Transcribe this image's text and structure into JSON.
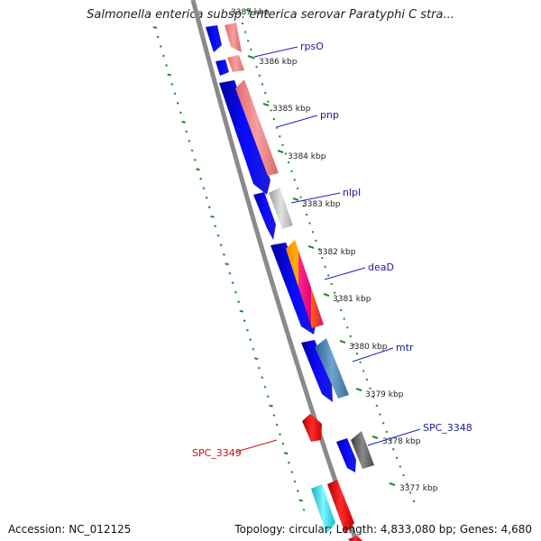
{
  "title": "Salmonella enterica subsp. enterica serovar Paratyphi C stra...",
  "footer": {
    "accession": "Accession: NC_012125",
    "summary": "Topology: circular; Length: 4,833,080 bp; Genes: 4,680"
  },
  "ticks": [
    {
      "label": "3387 kbp",
      "kbp": 3387
    },
    {
      "label": "3386 kbp",
      "kbp": 3386
    },
    {
      "label": "3385 kbp",
      "kbp": 3385
    },
    {
      "label": "3384 kbp",
      "kbp": 3384
    },
    {
      "label": "3383 kbp",
      "kbp": 3383
    },
    {
      "label": "3382 kbp",
      "kbp": 3382
    },
    {
      "label": "3381 kbp",
      "kbp": 3381
    },
    {
      "label": "3380 kbp",
      "kbp": 3380
    },
    {
      "label": "3379 kbp",
      "kbp": 3379
    },
    {
      "label": "3378 kbp",
      "kbp": 3378
    },
    {
      "label": "3377 kbp",
      "kbp": 3377
    }
  ],
  "genes": [
    {
      "name": "rpsO",
      "color": "#1a1aa0"
    },
    {
      "name": "pnp",
      "color": "#1a1aa0"
    },
    {
      "name": "nlpI",
      "color": "#1a1aa0"
    },
    {
      "name": "deaD",
      "color": "#1a1aa0"
    },
    {
      "name": "mtr",
      "color": "#1a1aa0"
    },
    {
      "name": "SPC_3348",
      "color": "#1a1aa0"
    },
    {
      "name": "SPC_3349",
      "color": "#d01010"
    }
  ],
  "colors": {
    "backbone": "#888888",
    "tick_marks": "#1e8c1e",
    "cds_blue": "#0000ee",
    "cds_pink": "#f08a8a",
    "cds_grey": "#b8b8b8",
    "cds_steelblue": "#4a80b0",
    "cds_darkgrey": "#6a6a6a",
    "cds_red": "#ee1111",
    "cds_cyan": "#22e0e8"
  }
}
